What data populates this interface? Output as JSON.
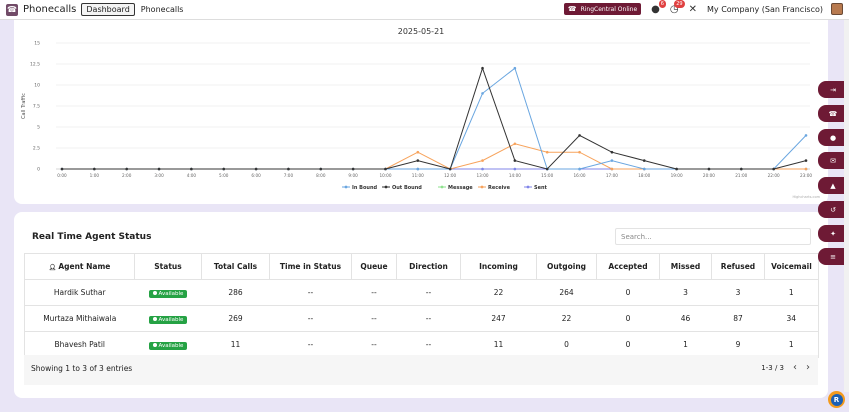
{
  "header": {
    "app_title": "Phonecalls",
    "dashboard_button": "Dashboard",
    "nav_link": "Phonecalls",
    "ringcentral_label": "RingCentral Online",
    "chat_badge": "6",
    "activity_badge": "29",
    "company": "My Company (San Francisco)"
  },
  "chart_data": {
    "type": "line",
    "title": "2025-05-21",
    "ylabel": "Call Traffic",
    "xlabel": "",
    "categories": [
      "0:00",
      "1:00",
      "2:00",
      "3:00",
      "4:00",
      "5:00",
      "6:00",
      "7:00",
      "8:00",
      "9:00",
      "10:00",
      "11:00",
      "12:00",
      "13:00",
      "14:00",
      "15:00",
      "16:00",
      "17:00",
      "18:00",
      "19:00",
      "20:00",
      "21:00",
      "22:00",
      "23:00"
    ],
    "yticks": [
      "0",
      "2.5",
      "5",
      "7.5",
      "10",
      "12.5",
      "15"
    ],
    "ylim": [
      0,
      15
    ],
    "grid": true,
    "legend_position": "bottom",
    "credits": "Highcharts.com",
    "series": [
      {
        "name": "In Bound",
        "color": "#6aa6e0",
        "values": [
          0,
          0,
          0,
          0,
          0,
          0,
          0,
          0,
          0,
          0,
          0,
          0,
          0,
          9,
          12,
          0,
          0,
          1,
          0,
          0,
          0,
          0,
          0,
          4
        ]
      },
      {
        "name": "Out Bound",
        "color": "#333333",
        "values": [
          0,
          0,
          0,
          0,
          0,
          0,
          0,
          0,
          0,
          0,
          0,
          1,
          0,
          12,
          1,
          0,
          4,
          2,
          1,
          0,
          0,
          0,
          0,
          1
        ]
      },
      {
        "name": "Message",
        "color": "#8ee28e",
        "values": [
          0,
          0,
          0,
          0,
          0,
          0,
          0,
          0,
          0,
          0,
          0,
          0,
          0,
          0,
          0,
          0,
          0,
          0,
          0,
          0,
          0,
          0,
          0,
          0
        ]
      },
      {
        "name": "Receive",
        "color": "#f7a35c",
        "values": [
          0,
          0,
          0,
          0,
          0,
          0,
          0,
          0,
          0,
          0,
          0,
          2,
          0,
          1,
          3,
          2,
          2,
          0,
          0,
          0,
          0,
          0,
          0,
          0
        ]
      },
      {
        "name": "Sent",
        "color": "#8085e9",
        "values": [
          0,
          0,
          0,
          0,
          0,
          0,
          0,
          0,
          0,
          0,
          0,
          0,
          0,
          0,
          0,
          0,
          0,
          0,
          0,
          0,
          0,
          0,
          0,
          0
        ]
      }
    ]
  },
  "agent_status": {
    "title": "Real Time Agent Status",
    "search_placeholder": "Search...",
    "columns": [
      "Agent Name",
      "Status",
      "Total Calls",
      "Time in Status",
      "Queue",
      "Direction",
      "Incoming",
      "Outgoing",
      "Accepted",
      "Missed",
      "Refused",
      "Voicemail"
    ],
    "rows": [
      [
        "Hardik Suthar",
        "Available",
        "286",
        "--",
        "--",
        "--",
        "22",
        "264",
        "0",
        "3",
        "3",
        "1"
      ],
      [
        "Murtaza Mithaiwala",
        "Available",
        "269",
        "--",
        "--",
        "--",
        "247",
        "22",
        "0",
        "46",
        "87",
        "34"
      ],
      [
        "Bhavesh Patil",
        "Available",
        "11",
        "--",
        "--",
        "--",
        "11",
        "0",
        "0",
        "1",
        "9",
        "1"
      ]
    ],
    "showing": "Showing 1 to 3 of 3 entries",
    "pager": "1-3 / 3"
  },
  "side_buttons": [
    "logout-icon",
    "phone-icon",
    "chat-icon",
    "message-icon",
    "user-icon",
    "history-icon",
    "users-icon",
    "menu-icon"
  ],
  "colors": {
    "brand": "#6e1a35",
    "available": "#25a244"
  }
}
